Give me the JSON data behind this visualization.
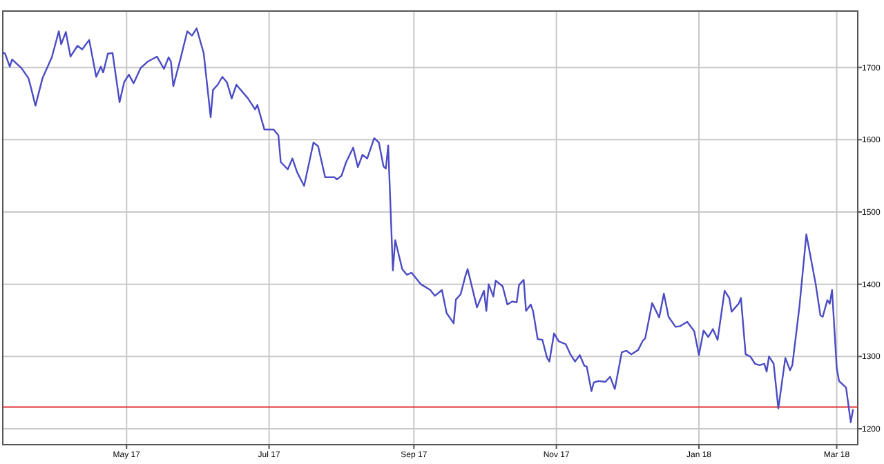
{
  "chart_data": {
    "type": "line",
    "x": [
      "2017-03-09",
      "2017-03-10",
      "2017-03-12",
      "2017-03-13",
      "2017-03-17",
      "2017-03-20",
      "2017-03-21",
      "2017-03-23",
      "2017-03-26",
      "2017-03-30",
      "2017-04-02",
      "2017-04-03",
      "2017-04-05",
      "2017-04-07",
      "2017-04-10",
      "2017-04-12",
      "2017-04-15",
      "2017-04-18",
      "2017-04-20",
      "2017-04-21",
      "2017-04-23",
      "2017-04-25",
      "2017-04-28",
      "2017-04-30",
      "2017-05-02",
      "2017-05-04",
      "2017-05-07",
      "2017-05-10",
      "2017-05-14",
      "2017-05-17",
      "2017-05-19",
      "2017-05-20",
      "2017-05-21",
      "2017-05-24",
      "2017-05-27",
      "2017-05-29",
      "2017-05-31",
      "2017-06-03",
      "2017-06-06",
      "2017-06-07",
      "2017-06-09",
      "2017-06-11",
      "2017-06-13",
      "2017-06-15",
      "2017-06-17",
      "2017-06-22",
      "2017-06-25",
      "2017-06-26",
      "2017-06-29",
      "2017-07-03",
      "2017-07-05",
      "2017-07-06",
      "2017-07-09",
      "2017-07-11",
      "2017-07-13",
      "2017-07-16",
      "2017-07-20",
      "2017-07-22",
      "2017-07-25",
      "2017-07-29",
      "2017-07-30",
      "2017-08-01",
      "2017-08-03",
      "2017-08-06",
      "2017-08-08",
      "2017-08-10",
      "2017-08-12",
      "2017-08-15",
      "2017-08-17",
      "2017-08-19",
      "2017-08-20",
      "2017-08-21",
      "2017-08-23",
      "2017-08-24",
      "2017-08-27",
      "2017-08-29",
      "2017-08-31",
      "2017-09-04",
      "2017-09-08",
      "2017-09-10",
      "2017-09-13",
      "2017-09-15",
      "2017-09-18",
      "2017-09-19",
      "2017-09-21",
      "2017-09-23",
      "2017-09-24",
      "2017-09-28",
      "2017-10-01",
      "2017-10-02",
      "2017-10-03",
      "2017-10-05",
      "2017-10-06",
      "2017-10-09",
      "2017-10-11",
      "2017-10-13",
      "2017-10-15",
      "2017-10-16",
      "2017-10-18",
      "2017-10-19",
      "2017-10-21",
      "2017-10-22",
      "2017-10-24",
      "2017-10-26",
      "2017-10-28",
      "2017-10-29",
      "2017-10-31",
      "2017-11-02",
      "2017-11-05",
      "2017-11-07",
      "2017-11-09",
      "2017-11-11",
      "2017-11-13",
      "2017-11-14",
      "2017-11-16",
      "2017-11-17",
      "2017-11-19",
      "2017-11-22",
      "2017-11-24",
      "2017-11-26",
      "2017-11-29",
      "2017-12-01",
      "2017-12-03",
      "2017-12-06",
      "2017-12-08",
      "2017-12-09",
      "2017-12-12",
      "2017-12-15",
      "2017-12-17",
      "2017-12-19",
      "2017-12-22",
      "2017-12-24",
      "2017-12-27",
      "2017-12-30",
      "2018-01-01",
      "2018-01-03",
      "2018-01-05",
      "2018-01-07",
      "2018-01-09",
      "2018-01-12",
      "2018-01-14",
      "2018-01-15",
      "2018-01-18",
      "2018-01-19",
      "2018-01-21",
      "2018-01-23",
      "2018-01-25",
      "2018-01-27",
      "2018-01-29",
      "2018-01-30",
      "2018-01-31",
      "2018-02-02",
      "2018-02-04",
      "2018-02-07",
      "2018-02-09",
      "2018-02-10",
      "2018-02-13",
      "2018-02-16",
      "2018-02-20",
      "2018-02-22",
      "2018-02-23",
      "2018-02-25",
      "2018-02-26",
      "2018-02-27",
      "2018-03-01",
      "2018-03-02",
      "2018-03-05",
      "2018-03-07",
      "2018-03-08"
    ],
    "series": [
      {
        "color": "#4b4bc4",
        "values": [
          1721,
          1719,
          1701,
          1711,
          1699,
          1685,
          1673,
          1647,
          1685,
          1714,
          1750,
          1732,
          1749,
          1715,
          1730,
          1725,
          1738,
          1687,
          1701,
          1693,
          1719,
          1720,
          1652,
          1680,
          1690,
          1678,
          1699,
          1708,
          1715,
          1698,
          1714,
          1708,
          1674,
          1711,
          1750,
          1744,
          1754,
          1720,
          1631,
          1669,
          1676,
          1687,
          1679,
          1657,
          1676,
          1657,
          1642,
          1648,
          1614,
          1614,
          1606,
          1569,
          1559,
          1574,
          1555,
          1536,
          1596,
          1591,
          1548,
          1548,
          1545,
          1550,
          1569,
          1589,
          1562,
          1579,
          1574,
          1602,
          1596,
          1563,
          1560,
          1592,
          1419,
          1461,
          1421,
          1413,
          1416,
          1400,
          1392,
          1384,
          1392,
          1360,
          1346,
          1379,
          1386,
          1411,
          1421,
          1368,
          1391,
          1363,
          1400,
          1383,
          1405,
          1397,
          1372,
          1376,
          1375,
          1399,
          1406,
          1363,
          1372,
          1363,
          1324,
          1323,
          1298,
          1293,
          1332,
          1321,
          1317,
          1303,
          1293,
          1302,
          1287,
          1286,
          1252,
          1264,
          1266,
          1265,
          1272,
          1255,
          1306,
          1308,
          1303,
          1309,
          1322,
          1325,
          1374,
          1354,
          1387,
          1355,
          1341,
          1342,
          1348,
          1335,
          1302,
          1336,
          1327,
          1338,
          1323,
          1391,
          1381,
          1362,
          1373,
          1381,
          1303,
          1300,
          1290,
          1288,
          1290,
          1279,
          1300,
          1290,
          1228,
          1298,
          1281,
          1288,
          1368,
          1469,
          1400,
          1357,
          1355,
          1378,
          1373,
          1392,
          1284,
          1266,
          1257,
          1209,
          1227
        ]
      }
    ],
    "xlim": [
      "2017-03-09",
      "2018-03-10"
    ],
    "xticks": [
      {
        "value": "2017-05-01",
        "label": "May 17"
      },
      {
        "value": "2017-07-01",
        "label": "Jul 17"
      },
      {
        "value": "2017-09-01",
        "label": "Sep 17"
      },
      {
        "value": "2017-11-01",
        "label": "Nov 17"
      },
      {
        "value": "2018-01-01",
        "label": "Jan 18"
      },
      {
        "value": "2018-03-01",
        "label": "Mar 18"
      }
    ],
    "ylim": [
      1178,
      1778
    ],
    "yticks": [
      1200,
      1300,
      1400,
      1500,
      1600,
      1700
    ],
    "ref_lines": [
      {
        "axis": "y",
        "value": 1230,
        "color": "#e03030"
      }
    ],
    "grid": true
  }
}
